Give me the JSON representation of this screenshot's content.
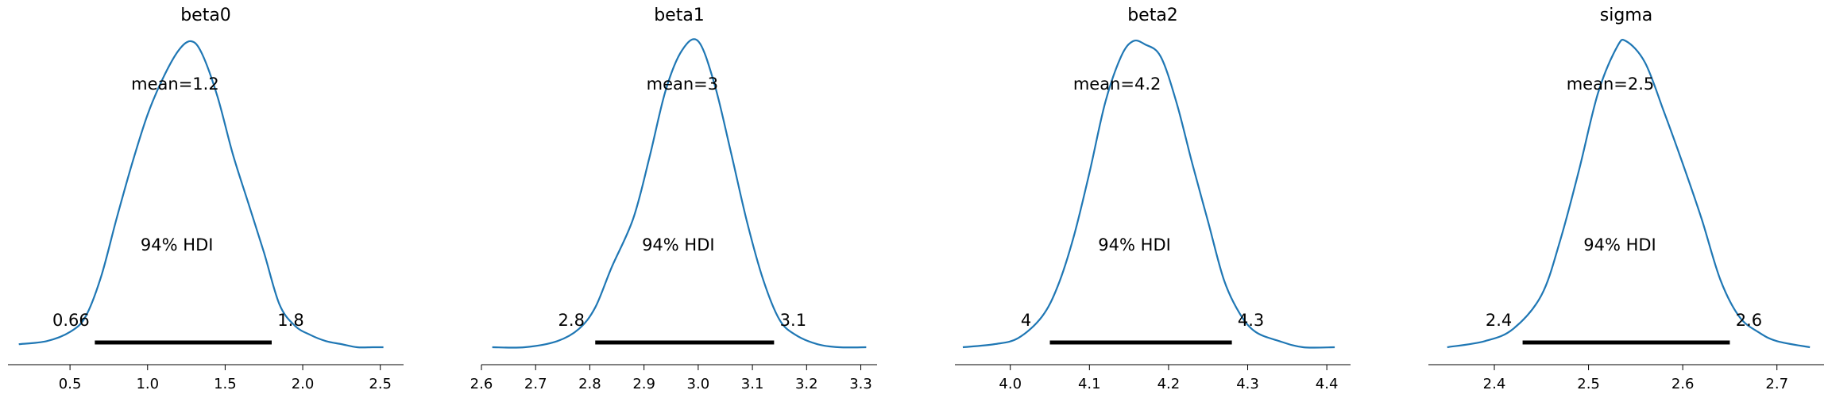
{
  "figure": {
    "hdi_label": "94% HDI",
    "line_color": "#1f77b4",
    "hdi_bar_color": "#000000"
  },
  "chart_data": [
    {
      "type": "line",
      "title": "beta0",
      "xlabel": "",
      "ylabel": "",
      "xlim": [
        0.1,
        2.65
      ],
      "xticks": [
        0.5,
        1.0,
        1.5,
        2.0,
        2.5
      ],
      "xtick_labels": [
        "0.5",
        "1.0",
        "1.5",
        "2.0",
        "2.5"
      ],
      "mean_label": "mean=1.2",
      "hdi_label": "94% HDI",
      "hdi_low": 0.66,
      "hdi_high": 1.8,
      "hdi_low_label": "0.66",
      "hdi_high_label": "1.8",
      "x": [
        0.17,
        0.35,
        0.5,
        0.6,
        0.7,
        0.8,
        0.9,
        1.0,
        1.1,
        1.2,
        1.28,
        1.35,
        1.45,
        1.55,
        1.65,
        1.75,
        1.85,
        1.95,
        2.05,
        2.15,
        2.25,
        2.35,
        2.45,
        2.52
      ],
      "y": [
        0.01,
        0.02,
        0.05,
        0.1,
        0.23,
        0.42,
        0.6,
        0.76,
        0.88,
        0.97,
        1.0,
        0.96,
        0.82,
        0.63,
        0.47,
        0.31,
        0.14,
        0.07,
        0.04,
        0.02,
        0.01,
        0.0,
        0.0,
        0.0
      ]
    },
    {
      "type": "line",
      "title": "beta1",
      "xlabel": "",
      "ylabel": "",
      "xlim": [
        2.6,
        3.33
      ],
      "xticks": [
        2.6,
        2.7,
        2.8,
        2.9,
        3.0,
        3.1,
        3.2,
        3.3
      ],
      "xtick_labels": [
        "2.6",
        "2.7",
        "2.8",
        "2.9",
        "3.0",
        "3.1",
        "3.2",
        "3.3"
      ],
      "mean_label": "mean=3",
      "hdi_label": "94% HDI",
      "hdi_low": 2.81,
      "hdi_high": 3.14,
      "hdi_low_label": "2.8",
      "hdi_high_label": "3.1",
      "x": [
        2.62,
        2.68,
        2.74,
        2.78,
        2.81,
        2.84,
        2.88,
        2.91,
        2.94,
        2.97,
        3.0,
        3.03,
        3.06,
        3.09,
        3.12,
        3.15,
        3.18,
        3.22,
        3.26,
        3.31
      ],
      "y": [
        0.0,
        0.0,
        0.02,
        0.06,
        0.13,
        0.26,
        0.42,
        0.62,
        0.84,
        0.97,
        1.0,
        0.86,
        0.64,
        0.41,
        0.22,
        0.09,
        0.04,
        0.01,
        0.0,
        0.0
      ]
    },
    {
      "type": "line",
      "title": "beta2",
      "xlabel": "",
      "ylabel": "",
      "xlim": [
        3.93,
        4.43
      ],
      "xticks": [
        4.0,
        4.1,
        4.2,
        4.3,
        4.4
      ],
      "xtick_labels": [
        "4.0",
        "4.1",
        "4.2",
        "4.3",
        "4.4"
      ],
      "mean_label": "mean=4.2",
      "hdi_label": "94% HDI",
      "hdi_low": 4.05,
      "hdi_high": 4.28,
      "hdi_low_label": "4",
      "hdi_high_label": "4.3",
      "x": [
        3.94,
        3.98,
        4.01,
        4.04,
        4.06,
        4.08,
        4.1,
        4.12,
        4.14,
        4.155,
        4.17,
        4.19,
        4.21,
        4.23,
        4.25,
        4.27,
        4.29,
        4.31,
        4.34,
        4.37,
        4.41
      ],
      "y": [
        0.0,
        0.01,
        0.03,
        0.1,
        0.2,
        0.36,
        0.57,
        0.8,
        0.95,
        1.0,
        0.99,
        0.95,
        0.8,
        0.6,
        0.41,
        0.22,
        0.11,
        0.05,
        0.02,
        0.0,
        0.0
      ]
    },
    {
      "type": "line",
      "title": "sigma",
      "xlabel": "",
      "ylabel": "",
      "xlim": [
        2.33,
        2.75
      ],
      "xticks": [
        2.4,
        2.5,
        2.6,
        2.7
      ],
      "xtick_labels": [
        "2.4",
        "2.5",
        "2.6",
        "2.7"
      ],
      "mean_label": "mean=2.5",
      "hdi_label": "94% HDI",
      "hdi_low": 2.43,
      "hdi_high": 2.65,
      "hdi_low_label": "2.4",
      "hdi_high_label": "2.6",
      "x": [
        2.35,
        2.39,
        2.42,
        2.45,
        2.47,
        2.49,
        2.51,
        2.53,
        2.54,
        2.56,
        2.58,
        2.6,
        2.62,
        2.64,
        2.66,
        2.68,
        2.7,
        2.735
      ],
      "y": [
        0.0,
        0.02,
        0.06,
        0.17,
        0.35,
        0.58,
        0.83,
        0.98,
        1.0,
        0.93,
        0.77,
        0.6,
        0.42,
        0.22,
        0.1,
        0.05,
        0.02,
        0.0
      ]
    }
  ]
}
